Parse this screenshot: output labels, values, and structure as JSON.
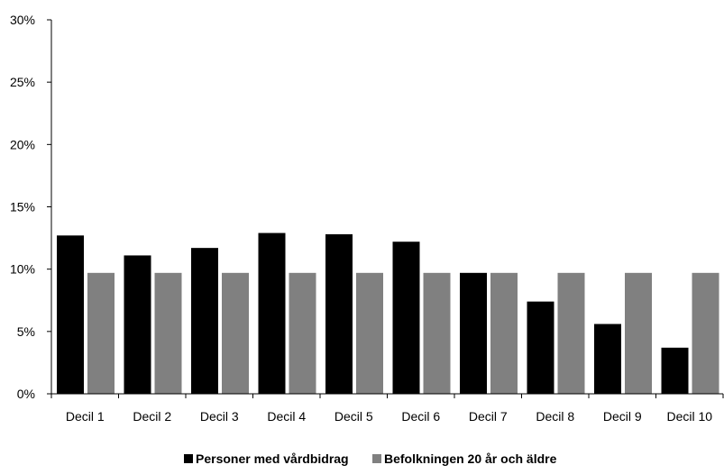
{
  "chart_data": {
    "type": "bar",
    "categories": [
      "Decil 1",
      "Decil 2",
      "Decil 3",
      "Decil 4",
      "Decil 5",
      "Decil 6",
      "Decil 7",
      "Decil 8",
      "Decil 9",
      "Decil 10"
    ],
    "series": [
      {
        "name": "Personer med vårdbidrag",
        "color": "#000000",
        "values": [
          12.7,
          11.1,
          11.7,
          12.9,
          12.8,
          12.2,
          9.7,
          7.4,
          5.6,
          3.7
        ]
      },
      {
        "name": "Befolkningen 20 år och äldre",
        "color": "#808080",
        "values": [
          9.7,
          9.7,
          9.7,
          9.7,
          9.7,
          9.7,
          9.7,
          9.7,
          9.7,
          9.7
        ]
      }
    ],
    "yticks": [
      "0%",
      "5%",
      "10%",
      "15%",
      "20%",
      "25%",
      "30%"
    ],
    "ylim": [
      0,
      30
    ],
    "grid": false,
    "legend_position": "bottom",
    "title": "",
    "xlabel": "",
    "ylabel": ""
  }
}
